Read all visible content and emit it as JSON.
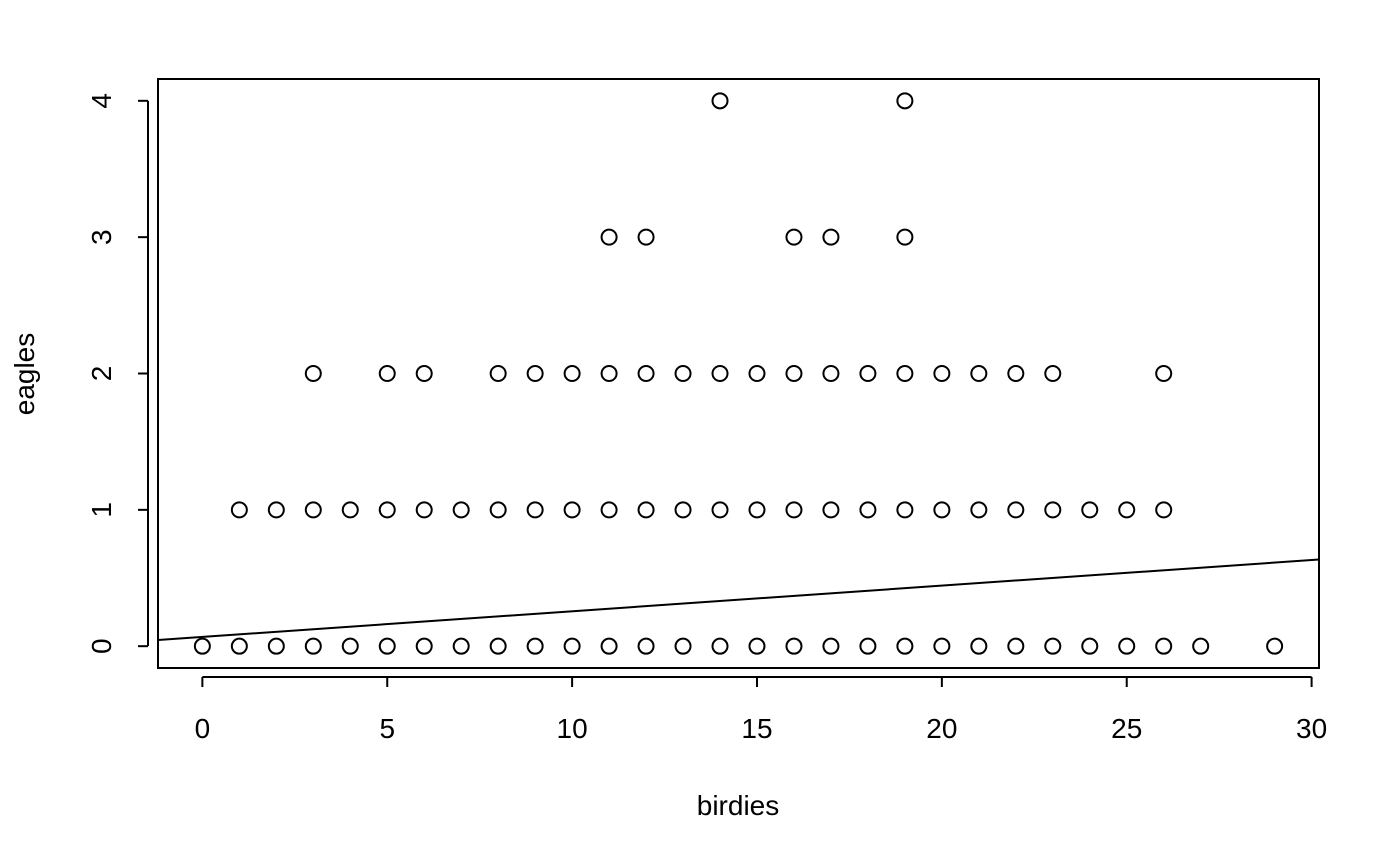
{
  "chart_data": {
    "type": "scatter",
    "title": "",
    "xlabel": "birdies",
    "ylabel": "eagles",
    "xlim": [
      -1.2,
      30.2
    ],
    "ylim": [
      -0.16,
      4.16
    ],
    "x_ticks": [
      0,
      5,
      10,
      15,
      20,
      25,
      30
    ],
    "x_tick_labels": [
      "0",
      "5",
      "10",
      "15",
      "20",
      "25",
      "30"
    ],
    "y_ticks": [
      0,
      1,
      2,
      3,
      4
    ],
    "y_tick_labels": [
      "0",
      "1",
      "2",
      "3",
      "4"
    ],
    "grid": false,
    "points": [
      [
        0,
        0
      ],
      [
        1,
        0
      ],
      [
        2,
        0
      ],
      [
        3,
        0
      ],
      [
        4,
        0
      ],
      [
        5,
        0
      ],
      [
        6,
        0
      ],
      [
        7,
        0
      ],
      [
        8,
        0
      ],
      [
        9,
        0
      ],
      [
        10,
        0
      ],
      [
        11,
        0
      ],
      [
        12,
        0
      ],
      [
        13,
        0
      ],
      [
        14,
        0
      ],
      [
        15,
        0
      ],
      [
        16,
        0
      ],
      [
        17,
        0
      ],
      [
        18,
        0
      ],
      [
        19,
        0
      ],
      [
        20,
        0
      ],
      [
        21,
        0
      ],
      [
        22,
        0
      ],
      [
        23,
        0
      ],
      [
        24,
        0
      ],
      [
        25,
        0
      ],
      [
        26,
        0
      ],
      [
        27,
        0
      ],
      [
        29,
        0
      ],
      [
        1,
        1
      ],
      [
        2,
        1
      ],
      [
        3,
        1
      ],
      [
        4,
        1
      ],
      [
        5,
        1
      ],
      [
        6,
        1
      ],
      [
        7,
        1
      ],
      [
        8,
        1
      ],
      [
        9,
        1
      ],
      [
        10,
        1
      ],
      [
        11,
        1
      ],
      [
        12,
        1
      ],
      [
        13,
        1
      ],
      [
        14,
        1
      ],
      [
        15,
        1
      ],
      [
        16,
        1
      ],
      [
        17,
        1
      ],
      [
        18,
        1
      ],
      [
        19,
        1
      ],
      [
        20,
        1
      ],
      [
        21,
        1
      ],
      [
        22,
        1
      ],
      [
        23,
        1
      ],
      [
        24,
        1
      ],
      [
        25,
        1
      ],
      [
        26,
        1
      ],
      [
        3,
        2
      ],
      [
        5,
        2
      ],
      [
        6,
        2
      ],
      [
        8,
        2
      ],
      [
        9,
        2
      ],
      [
        10,
        2
      ],
      [
        11,
        2
      ],
      [
        12,
        2
      ],
      [
        13,
        2
      ],
      [
        14,
        2
      ],
      [
        15,
        2
      ],
      [
        16,
        2
      ],
      [
        17,
        2
      ],
      [
        18,
        2
      ],
      [
        19,
        2
      ],
      [
        20,
        2
      ],
      [
        21,
        2
      ],
      [
        22,
        2
      ],
      [
        23,
        2
      ],
      [
        26,
        2
      ],
      [
        11,
        3
      ],
      [
        12,
        3
      ],
      [
        16,
        3
      ],
      [
        17,
        3
      ],
      [
        19,
        3
      ],
      [
        14,
        4
      ],
      [
        19,
        4
      ]
    ],
    "fit_line": {
      "intercept": 0.0681,
      "slope": 0.0188
    }
  }
}
